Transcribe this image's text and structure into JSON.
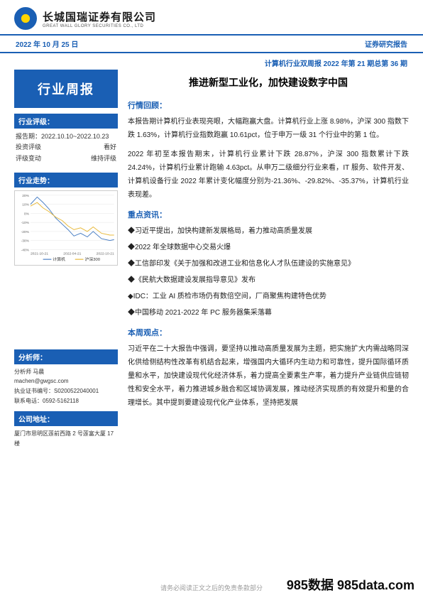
{
  "company": {
    "name_cn": "长城国瑞证券有限公司",
    "name_en": "GREAT WALL GLORY SECURITIES CO., LTD"
  },
  "dateBar": {
    "date": "2022 年 10 月 25 日",
    "reportType": "证券研究报告"
  },
  "subtitle": "计算机行业双周报 2022 年第 21 期总第 36 期",
  "sidebar": {
    "titleBox": "行业周报",
    "ratingHead": "行业评级：",
    "ratingRows": [
      {
        "label": "报告期：2022.10.10~2022.10.23",
        "value": ""
      },
      {
        "label": "投资评级",
        "value": "看好"
      },
      {
        "label": "评级变动",
        "value": "维持评级"
      }
    ],
    "trendHead": "行业走势：",
    "chart": {
      "type": "line",
      "y_ticks": [
        "20%",
        "10%",
        "0%",
        "-10%",
        "-20%",
        "-30%",
        "-40%"
      ],
      "x_ticks": [
        "2021-10-21",
        "2022-04-21",
        "2022-10-21"
      ],
      "series": [
        {
          "name": "计算机",
          "color": "#4a7fc4",
          "points": [
            [
              0,
              10
            ],
            [
              8,
              18
            ],
            [
              15,
              12
            ],
            [
              22,
              5
            ],
            [
              30,
              -5
            ],
            [
              38,
              -12
            ],
            [
              45,
              -18
            ],
            [
              52,
              -25
            ],
            [
              60,
              -22
            ],
            [
              68,
              -26
            ],
            [
              75,
              -20
            ],
            [
              85,
              -28
            ],
            [
              95,
              -30
            ],
            [
              100,
              -29
            ]
          ]
        },
        {
          "name": "沪深300",
          "color": "#e8b93a",
          "points": [
            [
              0,
              8
            ],
            [
              8,
              12
            ],
            [
              15,
              6
            ],
            [
              22,
              2
            ],
            [
              30,
              -4
            ],
            [
              38,
              -8
            ],
            [
              45,
              -14
            ],
            [
              52,
              -18
            ],
            [
              60,
              -16
            ],
            [
              68,
              -20
            ],
            [
              75,
              -15
            ],
            [
              85,
              -22
            ],
            [
              95,
              -24
            ],
            [
              100,
              -24
            ]
          ]
        }
      ],
      "ymin": -40,
      "ymax": 20,
      "grid_color": "#dddddd",
      "bg": "#ffffff",
      "legend_pos": "bottom"
    },
    "analystHead": "分析师：",
    "analyst": {
      "name": "分析师 马晨",
      "email": "machen@gwgsc.com",
      "cert": "执业证书编号：S0200522040001",
      "phone": "联系电话：0592-5162118"
    },
    "addressHead": "公司地址：",
    "address": "厦门市思明区莲前西路 2 号莲富大厦 17 楼"
  },
  "main": {
    "title": "推进新型工业化，加快建设数字中国",
    "reviewHead": "行情回顾：",
    "reviewParas": [
      "本报告期计算机行业表现亮眼，大幅跑赢大盘。计算机行业上涨 8.98%，沪深 300 指数下跌 1.63%，计算机行业指数跑赢 10.61pct，位于申万一级 31 个行业中的第 1 位。",
      "2022 年初至本报告期末，计算机行业累计下跌 28.87%，沪深 300 指数累计下跌 24.24%，计算机行业累计跑输 4.63pct。从申万二级细分行业来看，IT 服务、软件开发、计算机设备行业 2022 年累计变化幅度分别为-21.36%、-29.82%、-35.37%，计算机行业表现差。"
    ],
    "newsHead": "重点资讯：",
    "newsItems": [
      "◆习近平提出，加快构建新发展格局，着力推动高质量发展",
      "◆2022 年全球数据中心交易火爆",
      "◆工信部印发《关于加强和改进工业和信息化人才队伍建设的实施意见》",
      "◆《民航大数据建设发展指导意见》发布",
      "◆IDC：工业 AI 质检市场仍有数倍空间，厂商聚焦构建特色优势",
      "◆中国移动 2021-2022 年 PC 服务器集采落幕"
    ],
    "viewHead": "本周观点：",
    "viewPara": "习近平在二十大报告中强调，要坚持以推动高质量发展为主题，把实施扩大内需战略同深化供给侧结构性改革有机结合起来，增强国内大循环内生动力和可靠性，提升国际循环质量和水平，加快建设现代化经济体系，着力提高全要素生产率，着力提升产业链供应链韧性和安全水平，着力推进城乡融合和区域协调发展，推动经济实现质的有效提升和量的合理增长。其中提到要建设现代化产业体系，坚持把发展"
  },
  "footer": {
    "disclaimer": "请务必阅读正文之后的免责条款部分"
  },
  "watermark": "985数据 985data.com"
}
